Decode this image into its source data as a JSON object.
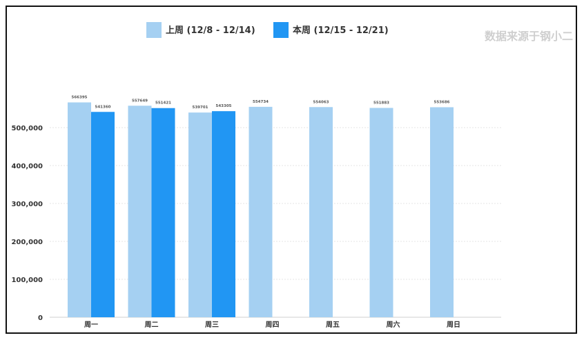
{
  "source_note": "数据来源于钢小二",
  "colors": {
    "last_week": "#A5D0F2",
    "this_week": "#2196F3"
  },
  "chart_data": {
    "type": "bar",
    "categories": [
      "周一",
      "周二",
      "周三",
      "周四",
      "周五",
      "周六",
      "周日"
    ],
    "series": [
      {
        "name": "上周 (12/8 - 12/14)",
        "values": [
          566395,
          557649,
          539701,
          554734,
          554063,
          551883,
          553686
        ]
      },
      {
        "name": "本周 (12/15 - 12/21)",
        "values": [
          541360,
          551421,
          543305,
          null,
          null,
          null,
          null
        ]
      }
    ],
    "ylim": [
      0,
      600000
    ],
    "yticks": [
      0,
      100000,
      200000,
      300000,
      400000,
      500000
    ],
    "ytick_labels": [
      "0",
      "100,000",
      "200,000",
      "300,000",
      "400,000",
      "500,000"
    ],
    "grid": true,
    "legend": "top-center"
  }
}
